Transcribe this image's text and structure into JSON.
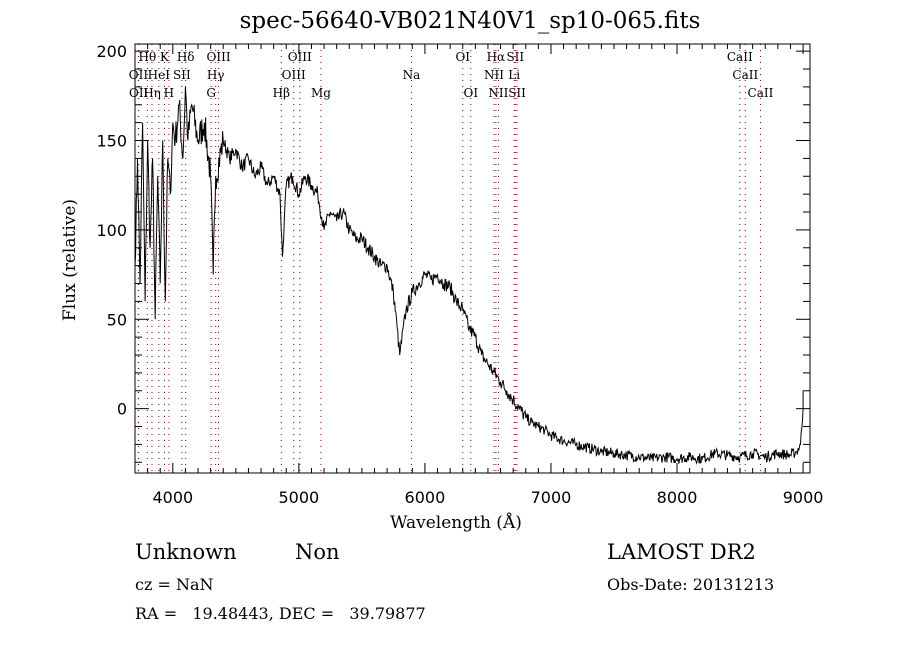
{
  "chart_data": {
    "type": "line",
    "title": "spec-56640-VB021N40V1_sp10-065.fits",
    "xlabel": "Wavelength (Å)",
    "ylabel": "Flux (relative)",
    "xlim": [
      3700,
      9055
    ],
    "ylim": [
      -36,
      204
    ],
    "xticks": [
      4000,
      5000,
      6000,
      7000,
      8000,
      9000
    ],
    "yticks": [
      0,
      50,
      100,
      150,
      200
    ],
    "grid": false,
    "series": [
      {
        "name": "spectrum",
        "x": [
          3700,
          3720,
          3740,
          3760,
          3780,
          3800,
          3820,
          3840,
          3860,
          3880,
          3900,
          3920,
          3940,
          3960,
          3980,
          4000,
          4020,
          4050,
          4080,
          4100,
          4120,
          4150,
          4200,
          4250,
          4300,
          4320,
          4340,
          4400,
          4450,
          4500,
          4550,
          4600,
          4650,
          4700,
          4750,
          4800,
          4850,
          4870,
          4900,
          4950,
          5000,
          5050,
          5100,
          5150,
          5200,
          5250,
          5300,
          5350,
          5400,
          5450,
          5500,
          5550,
          5600,
          5650,
          5700,
          5750,
          5780,
          5800,
          5850,
          5900,
          5950,
          6000,
          6050,
          6100,
          6150,
          6200,
          6250,
          6300,
          6350,
          6400,
          6450,
          6500,
          6550,
          6600,
          6650,
          6700,
          6750,
          6800,
          6850,
          6900,
          6950,
          7000,
          7100,
          7200,
          7300,
          7400,
          7500,
          7600,
          7700,
          7800,
          7900,
          8000,
          8100,
          8200,
          8300,
          8400,
          8500,
          8600,
          8700,
          8800,
          8900,
          8950,
          8980,
          9000
        ],
        "y": [
          80,
          140,
          70,
          160,
          60,
          150,
          90,
          140,
          50,
          130,
          70,
          150,
          60,
          140,
          120,
          160,
          150,
          170,
          140,
          180,
          150,
          170,
          150,
          160,
          130,
          75,
          130,
          150,
          140,
          145,
          135,
          140,
          130,
          135,
          125,
          130,
          120,
          85,
          125,
          130,
          120,
          130,
          125,
          120,
          100,
          110,
          105,
          110,
          100,
          95,
          95,
          90,
          85,
          80,
          80,
          65,
          45,
          30,
          55,
          65,
          70,
          75,
          72,
          75,
          70,
          68,
          60,
          55,
          45,
          40,
          30,
          25,
          20,
          15,
          10,
          5,
          0,
          -5,
          -8,
          -10,
          -12,
          -15,
          -18,
          -20,
          -22,
          -24,
          -25,
          -26,
          -27,
          -28,
          -27,
          -28,
          -27,
          -28,
          -25,
          -26,
          -27,
          -25,
          -27,
          -25,
          -26,
          -24,
          -20,
          0
        ]
      }
    ],
    "line_markers": [
      {
        "label": "Hθ",
        "wavelength": 3798,
        "row": 1
      },
      {
        "label": "K",
        "wavelength": 3934,
        "row": 1
      },
      {
        "label": "Hδ",
        "wavelength": 4102,
        "row": 1
      },
      {
        "label": "OIII",
        "wavelength": 4363,
        "row": 1
      },
      {
        "label": "OIII",
        "wavelength": 5007,
        "row": 1
      },
      {
        "label": "OI",
        "wavelength": 6300,
        "row": 1
      },
      {
        "label": "Hα",
        "wavelength": 6563,
        "row": 1
      },
      {
        "label": "SII",
        "wavelength": 6717,
        "row": 1
      },
      {
        "label": "CaII",
        "wavelength": 8498,
        "row": 1
      },
      {
        "label": "OII",
        "wavelength": 3727,
        "row": 2
      },
      {
        "label": "HeI",
        "wavelength": 3889,
        "row": 2
      },
      {
        "label": "SII",
        "wavelength": 4072,
        "row": 2
      },
      {
        "label": "Hγ",
        "wavelength": 4340,
        "row": 2
      },
      {
        "label": "OIII",
        "wavelength": 4959,
        "row": 2
      },
      {
        "label": "Na",
        "wavelength": 5893,
        "row": 2
      },
      {
        "label": "NII",
        "wavelength": 6548,
        "row": 2
      },
      {
        "label": "Li",
        "wavelength": 6708,
        "row": 2
      },
      {
        "label": "CaII",
        "wavelength": 8542,
        "row": 2
      },
      {
        "label": "OII",
        "wavelength": 3729,
        "row": 3
      },
      {
        "label": "Hη",
        "wavelength": 3835,
        "row": 3
      },
      {
        "label": "H",
        "wavelength": 3969,
        "row": 3
      },
      {
        "label": "G",
        "wavelength": 4304,
        "row": 3
      },
      {
        "label": "Hβ",
        "wavelength": 4861,
        "row": 3
      },
      {
        "label": "Mg",
        "wavelength": 5175,
        "row": 3
      },
      {
        "label": "OI",
        "wavelength": 6364,
        "row": 3
      },
      {
        "label": "NII",
        "wavelength": 6583,
        "row": 3
      },
      {
        "label": "SII",
        "wavelength": 6731,
        "row": 3
      },
      {
        "label": "CaII",
        "wavelength": 8662,
        "row": 3
      }
    ],
    "marker_color": "#8b0000"
  },
  "info": {
    "object_class": "Unknown",
    "subclass": "Non",
    "survey": "LAMOST DR2",
    "redshift": "cz = NaN",
    "obs_date": "Obs-Date: 20131213",
    "coords": "RA =   19.48443, DEC =   39.79877"
  }
}
